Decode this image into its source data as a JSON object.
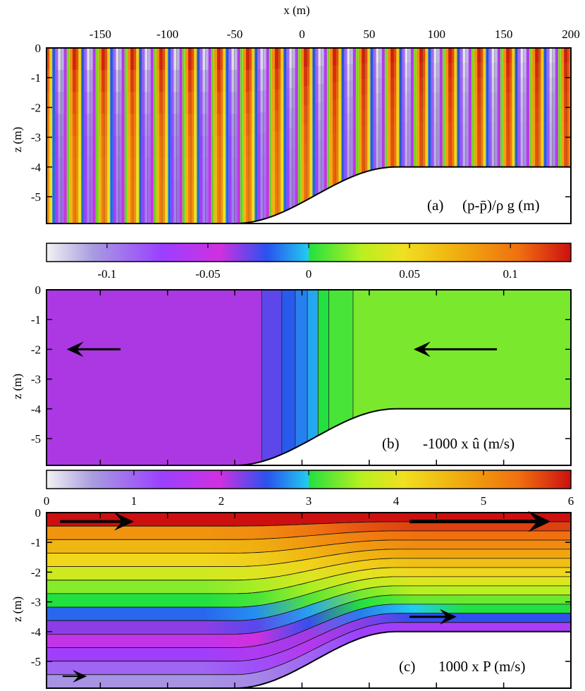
{
  "chart_data": [
    {
      "type": "contour",
      "id": "a",
      "panel_label": "(a)",
      "quantity": "(p-p̄)/ρ g (m)",
      "xlabel": "x (m)",
      "ylabel": "z (m)",
      "xlim": [
        -190,
        200
      ],
      "ylim": [
        -5.9,
        0
      ],
      "xticks": [
        -150,
        -100,
        -50,
        0,
        50,
        100,
        150,
        200
      ],
      "xtick_labels": [
        "-150",
        "-100",
        "-50",
        "0",
        "50",
        "100",
        "150",
        "200"
      ],
      "yticks": [
        0,
        -1,
        -2,
        -3,
        -4,
        -5
      ],
      "ytick_labels": [
        "0",
        "-1",
        "-2",
        "-3",
        "-4",
        "-5"
      ],
      "bottom_profile": {
        "x_start_slope": -50,
        "x_end_slope": 70,
        "depth_deep": 5.9,
        "depth_shallow": 4.0
      },
      "wavelength": 21.5,
      "amplitude": 0.13
    },
    {
      "type": "colorbar",
      "for": "a",
      "range": [
        -0.13,
        0.13
      ],
      "ticks": [
        -0.1,
        -0.05,
        0,
        0.05,
        0.1
      ],
      "tick_labels": [
        "-0.1",
        "-0.05",
        "0",
        "0.05",
        "0.1"
      ]
    },
    {
      "type": "contour",
      "id": "b",
      "panel_label": "(b)",
      "quantity": "-1000 x û (m/s)",
      "ylabel": "z (m)",
      "ylim": [
        -5.9,
        0
      ],
      "yticks": [
        0,
        -1,
        -2,
        -3,
        -4,
        -5
      ],
      "ytick_labels": [
        "0",
        "-1",
        "-2",
        "-3",
        "-4",
        "-5"
      ],
      "band_values": [
        2.1,
        2.35,
        2.55,
        2.7,
        2.85,
        3.0,
        3.15,
        3.35
      ],
      "band_boundaries_x": [
        -30,
        -15,
        -5,
        4,
        12,
        20,
        38
      ],
      "arrows": [
        {
          "x_from": -135,
          "x_to": -175,
          "z": -2.0
        },
        {
          "x_from": 145,
          "x_to": 83,
          "z": -2.0
        }
      ]
    },
    {
      "type": "colorbar",
      "for": "b",
      "range": [
        0,
        6
      ],
      "ticks": [
        0,
        1,
        2,
        3,
        4,
        5,
        6
      ],
      "tick_labels": [
        "0",
        "1",
        "2",
        "3",
        "4",
        "5",
        "6"
      ]
    },
    {
      "type": "contour",
      "id": "c",
      "panel_label": "(c)",
      "quantity": "1000 x P (m/s)",
      "ylabel": "z (m)",
      "ylim": [
        -5.9,
        0
      ],
      "yticks": [
        0,
        -1,
        -2,
        -3,
        -4,
        -5
      ],
      "ytick_labels": [
        "0",
        "-1",
        "-2",
        "-3",
        "-4",
        "-5"
      ],
      "deep_levels": [
        6.0,
        5.0,
        4.6,
        4.2,
        3.8,
        3.4,
        3.0,
        2.6,
        2.2,
        1.8,
        1.4,
        1.0,
        0.6
      ],
      "shallow_levels": [
        6.0,
        5.7,
        5.4,
        5.1,
        4.8,
        4.5,
        4.2,
        3.9,
        3.6,
        3.3,
        3.0,
        2.5,
        1.5
      ],
      "arrows": [
        {
          "x_from": -180,
          "x_to": -125,
          "z": -0.3,
          "weight": 4
        },
        {
          "x_from": 80,
          "x_to": 185,
          "z": -0.3,
          "weight": 5
        },
        {
          "x_from": 80,
          "x_to": 115,
          "z": -3.5,
          "weight": 3
        },
        {
          "x_from": -178,
          "x_to": -160,
          "z": -5.5,
          "weight": 2
        }
      ]
    }
  ]
}
